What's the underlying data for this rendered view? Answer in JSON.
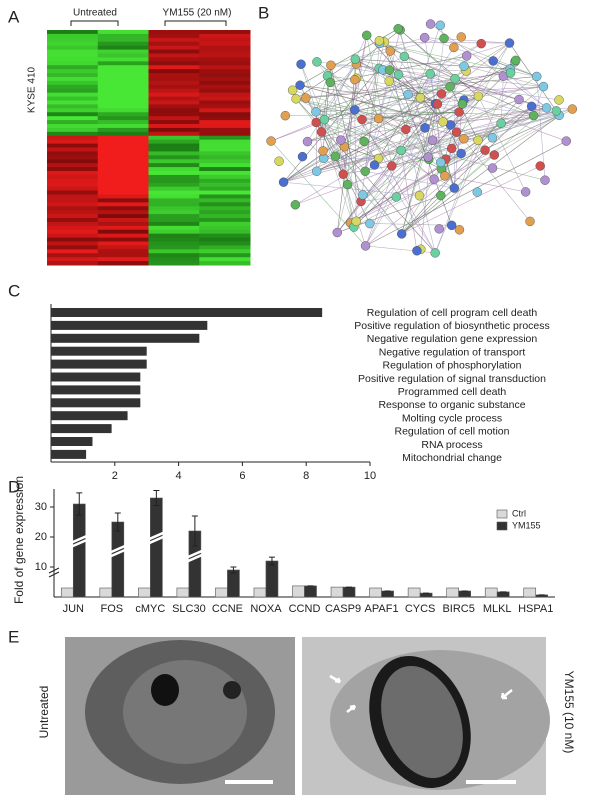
{
  "figure": {
    "panel_labels": [
      "A",
      "B",
      "C",
      "D",
      "E"
    ],
    "heatmap": {
      "columns": [
        "Untreated",
        "YM155 (20 nM)"
      ],
      "row_label": "KYSE 410"
    },
    "micrographs": {
      "left_label": "Untreated",
      "right_label": "YM155 (10 nM)"
    }
  },
  "chart_data": [
    {
      "type": "barh",
      "categories": [
        "Regulation of cell program cell death",
        "Positive regulation of biosynthetic process",
        "Negative regulation gene expression",
        "Negative regulation of transport",
        "Regulation of phosphorylation",
        "Positive regulation of signal transduction",
        "Programmed cell death",
        "Response to organic substance",
        "Molting cycle process",
        "Regulation of cell motion",
        "RNA  process",
        "Mitochondrial change"
      ],
      "values": [
        8.5,
        4.9,
        4.65,
        3.0,
        3.0,
        2.8,
        2.8,
        2.8,
        2.4,
        1.9,
        1.3,
        1.1
      ],
      "color": "#333333",
      "xlim": [
        0,
        10
      ],
      "xticks": [
        2,
        4,
        6,
        8,
        10
      ]
    },
    {
      "type": "bar",
      "y_label": "Fold of gene expression",
      "categories": [
        "JUN",
        "FOS",
        "cMYC",
        "SLC30",
        "CCNE",
        "NOXA",
        "CCND",
        "CASP9",
        "APAF1",
        "CYCS",
        "BIRC5",
        "MLKL",
        "HSPA1"
      ],
      "series": [
        {
          "name": "Ctrl",
          "color": "#d9d9d9",
          "values": [
            3,
            3,
            3,
            3,
            3,
            3,
            3.7,
            3.3,
            3,
            3,
            3,
            3,
            3
          ]
        },
        {
          "name": "YM155",
          "color": "#333333",
          "values": [
            31,
            25,
            33,
            22,
            9,
            12,
            3.7,
            3.3,
            2,
            1.3,
            2,
            1.7,
            0.7
          ],
          "errors": [
            3.7,
            3,
            2.5,
            5,
            1,
            1.3,
            0,
            0,
            0,
            0,
            0,
            0,
            0
          ]
        }
      ],
      "ylim": [
        0,
        36
      ],
      "yticks": [
        10,
        20,
        30
      ],
      "legend": "upper-right"
    }
  ]
}
